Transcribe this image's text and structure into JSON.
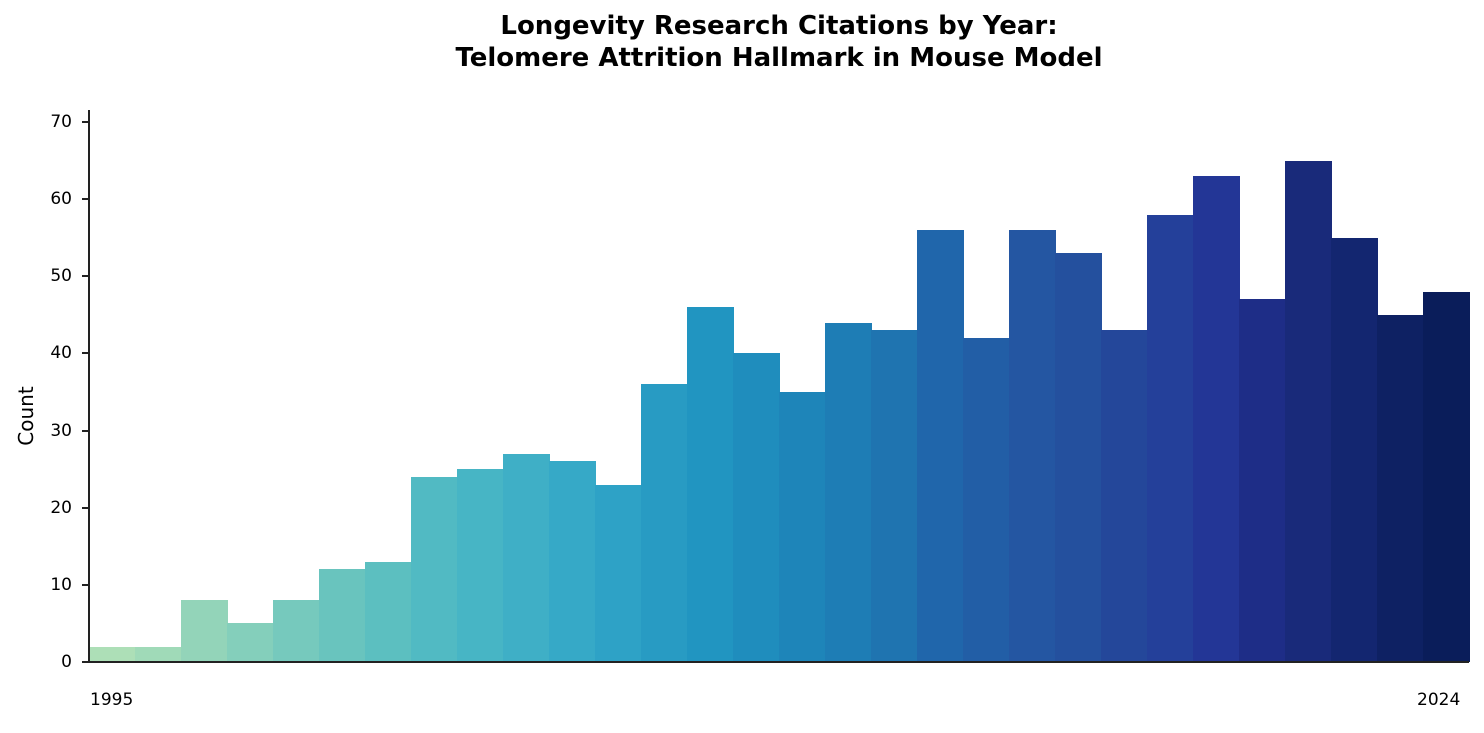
{
  "chart": {
    "title_line1": "Longevity Research Citations by Year:",
    "title_line2": "Telomere Attrition Hallmark in Mouse Model",
    "ylabel": "Count",
    "xtick_first": "1995",
    "xtick_last": "2024"
  },
  "chart_data": {
    "type": "bar",
    "title": "Longevity Research Citations by Year: Telomere Attrition Hallmark in Mouse Model",
    "xlabel": "",
    "ylabel": "Count",
    "ylim": [
      0,
      71.5
    ],
    "yticks": [
      0,
      10,
      20,
      30,
      40,
      50,
      60,
      70
    ],
    "xtick_labels": [
      "1995",
      "2024"
    ],
    "grid": false,
    "legend": null,
    "categories": [
      "1995",
      "1996",
      "1997",
      "1998",
      "1999",
      "2000",
      "2001",
      "2002",
      "2003",
      "2004",
      "2005",
      "2006",
      "2007",
      "2008",
      "2009",
      "2010",
      "2011",
      "2012",
      "2013",
      "2014",
      "2015",
      "2016",
      "2017",
      "2018",
      "2019",
      "2020",
      "2021",
      "2022",
      "2023",
      "2024"
    ],
    "values": [
      2,
      2,
      8,
      5,
      8,
      12,
      13,
      24,
      25,
      27,
      26,
      23,
      36,
      46,
      40,
      35,
      44,
      43,
      56,
      42,
      56,
      53,
      43,
      58,
      63,
      47,
      65,
      55,
      45,
      48
    ],
    "colors": [
      "#addfb7",
      "#a0dab8",
      "#93d4b9",
      "#84cfbb",
      "#76c9bd",
      "#69c4be",
      "#5cbfc0",
      "#51bac3",
      "#47b5c5",
      "#3fafc6",
      "#36a9c7",
      "#2ea2c6",
      "#289bc3",
      "#2195c1",
      "#1f8dbd",
      "#1e85b9",
      "#1e7db5",
      "#1f74b0",
      "#2066ab",
      "#225ea6",
      "#2456a2",
      "#24509e",
      "#24479a",
      "#24409a",
      "#233696",
      "#1e2d87",
      "#192a7a",
      "#132670",
      "#0e2163",
      "#0a1d5a"
    ]
  }
}
